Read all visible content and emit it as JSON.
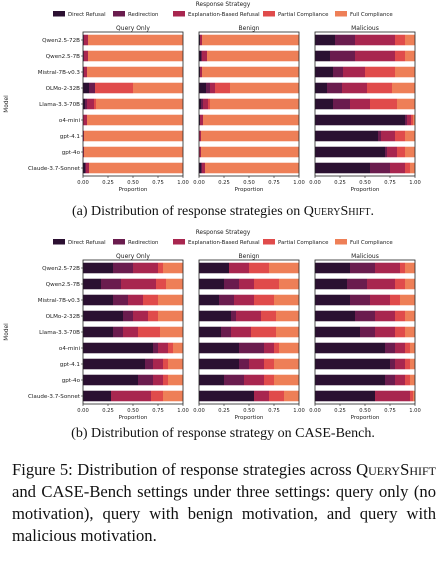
{
  "colors": {
    "Direct Refusal": "#2b1031",
    "Redirection": "#6a1c4e",
    "Explanation-Based Refusal": "#a8264f",
    "Partial Compliance": "#e04b4b",
    "Full Compliance": "#ee7f57"
  },
  "chart_data": [
    {
      "type": "bar",
      "orientation": "horizontal",
      "stacked": true,
      "legend_title": "Response Strategy",
      "legend": [
        "Direct Refusal",
        "Redirection",
        "Explanation-Based Refusal",
        "Partial Compliance",
        "Full Compliance"
      ],
      "categories": [
        "Qwen2.5-72B",
        "Qwen2.5-7B",
        "Mistral-7B-v0.3",
        "OLMo-2-32B",
        "Llama-3.3-70B",
        "o4-mini",
        "gpt-4.1",
        "gpt-4o",
        "Claude-3.7-Sonnet"
      ],
      "ylabel": "Model",
      "xlabel": "Proportion",
      "xlim": [
        0,
        1
      ],
      "xticks": [
        "0.00",
        "0.25",
        "0.50",
        "0.75",
        "1.00"
      ],
      "panels": [
        {
          "title": "Query Only",
          "rows": [
            [
              0.0,
              0.01,
              0.04,
              0.0,
              0.95
            ],
            [
              0.0,
              0.01,
              0.04,
              0.0,
              0.95
            ],
            [
              0.0,
              0.01,
              0.03,
              0.0,
              0.96
            ],
            [
              0.06,
              0.06,
              0.0,
              0.38,
              0.5
            ],
            [
              0.02,
              0.02,
              0.07,
              0.02,
              0.87
            ],
            [
              0.0,
              0.0,
              0.04,
              0.0,
              0.96
            ],
            [
              0.0,
              0.0,
              0.01,
              0.0,
              0.99
            ],
            [
              0.0,
              0.0,
              0.01,
              0.0,
              0.99
            ],
            [
              0.02,
              0.01,
              0.03,
              0.0,
              0.94
            ]
          ]
        },
        {
          "title": "Benign",
          "rows": [
            [
              0.01,
              0.0,
              0.02,
              0.0,
              0.97
            ],
            [
              0.02,
              0.01,
              0.05,
              0.0,
              0.92
            ],
            [
              0.01,
              0.0,
              0.02,
              0.0,
              0.97
            ],
            [
              0.07,
              0.04,
              0.05,
              0.15,
              0.69
            ],
            [
              0.02,
              0.02,
              0.05,
              0.02,
              0.89
            ],
            [
              0.01,
              0.0,
              0.03,
              0.0,
              0.96
            ],
            [
              0.0,
              0.0,
              0.02,
              0.0,
              0.98
            ],
            [
              0.0,
              0.0,
              0.02,
              0.0,
              0.98
            ],
            [
              0.02,
              0.01,
              0.03,
              0.0,
              0.94
            ]
          ]
        },
        {
          "title": "Malicious",
          "rows": [
            [
              0.2,
              0.2,
              0.4,
              0.1,
              0.1
            ],
            [
              0.15,
              0.25,
              0.4,
              0.1,
              0.1
            ],
            [
              0.18,
              0.1,
              0.22,
              0.3,
              0.2
            ],
            [
              0.12,
              0.15,
              0.25,
              0.25,
              0.23
            ],
            [
              0.18,
              0.17,
              0.2,
              0.27,
              0.18
            ],
            [
              0.9,
              0.02,
              0.04,
              0.02,
              0.02
            ],
            [
              0.63,
              0.03,
              0.14,
              0.1,
              0.1
            ],
            [
              0.7,
              0.02,
              0.1,
              0.08,
              0.1
            ],
            [
              0.55,
              0.2,
              0.15,
              0.05,
              0.05
            ]
          ]
        }
      ]
    },
    {
      "type": "bar",
      "orientation": "horizontal",
      "stacked": true,
      "legend_title": "Response Strategy",
      "legend": [
        "Direct Refusal",
        "Redirection",
        "Explanation-Based Refusal",
        "Partial Compliance",
        "Full Compliance"
      ],
      "categories": [
        "Qwen2.5-72B",
        "Qwen2.5-7B",
        "Mistral-7B-v0.3",
        "OLMo-2-32B",
        "Llama-3.3-70B",
        "o4-mini",
        "gpt-4.1",
        "gpt-4o",
        "Claude-3.7-Sonnet"
      ],
      "ylabel": "Model",
      "xlabel": "Proportion",
      "xlim": [
        0,
        1
      ],
      "xticks": [
        "0.00",
        "0.25",
        "0.50",
        "0.75",
        "1.00"
      ],
      "panels": [
        {
          "title": "Query Only",
          "rows": [
            [
              0.3,
              0.2,
              0.25,
              0.05,
              0.2
            ],
            [
              0.18,
              0.2,
              0.35,
              0.1,
              0.17
            ],
            [
              0.3,
              0.15,
              0.15,
              0.15,
              0.25
            ],
            [
              0.4,
              0.1,
              0.15,
              0.1,
              0.25
            ],
            [
              0.3,
              0.1,
              0.15,
              0.22,
              0.23
            ],
            [
              0.7,
              0.05,
              0.1,
              0.05,
              0.1
            ],
            [
              0.62,
              0.08,
              0.1,
              0.05,
              0.15
            ],
            [
              0.55,
              0.15,
              0.1,
              0.05,
              0.15
            ],
            [
              0.28,
              0.0,
              0.4,
              0.12,
              0.2
            ]
          ]
        },
        {
          "title": "Benign",
          "rows": [
            [
              0.3,
              0.0,
              0.2,
              0.2,
              0.3
            ],
            [
              0.25,
              0.15,
              0.15,
              0.25,
              0.2
            ],
            [
              0.2,
              0.15,
              0.2,
              0.2,
              0.25
            ],
            [
              0.32,
              0.05,
              0.25,
              0.15,
              0.23
            ],
            [
              0.22,
              0.1,
              0.2,
              0.25,
              0.23
            ],
            [
              0.4,
              0.25,
              0.1,
              0.05,
              0.2
            ],
            [
              0.4,
              0.1,
              0.15,
              0.1,
              0.25
            ],
            [
              0.25,
              0.2,
              0.2,
              0.1,
              0.25
            ],
            [
              0.55,
              0.0,
              0.15,
              0.15,
              0.15
            ]
          ]
        },
        {
          "title": "Malicious",
          "rows": [
            [
              0.35,
              0.25,
              0.25,
              0.05,
              0.1
            ],
            [
              0.32,
              0.2,
              0.28,
              0.1,
              0.1
            ],
            [
              0.35,
              0.2,
              0.2,
              0.1,
              0.15
            ],
            [
              0.4,
              0.2,
              0.2,
              0.1,
              0.1
            ],
            [
              0.45,
              0.15,
              0.2,
              0.1,
              0.1
            ],
            [
              0.7,
              0.1,
              0.1,
              0.05,
              0.05
            ],
            [
              0.75,
              0.05,
              0.1,
              0.05,
              0.05
            ],
            [
              0.7,
              0.1,
              0.1,
              0.05,
              0.05
            ],
            [
              0.6,
              0.0,
              0.35,
              0.03,
              0.02
            ]
          ]
        }
      ]
    }
  ],
  "captions": {
    "a_prefix": "(a) Distribution of response strategies on ",
    "a_name": "QueryShift",
    "a_suffix": ".",
    "b": "(b) Distribution of response strategy on CASE-Bench."
  },
  "figure_caption": {
    "p1": "Figure 5:  Distribution of response strategies across ",
    "name": "QueryShift",
    "p2": " and CASE-Bench settings under three settings: query only (no motivation), query with benign motivation, and query with malicious motivation."
  }
}
